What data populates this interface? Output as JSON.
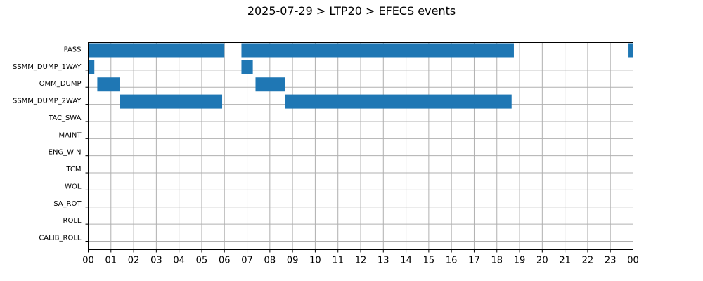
{
  "chart_data": {
    "type": "bar",
    "orientation": "horizontal-timeline",
    "title": "2025-07-29 > LTP20 > EFECS events",
    "xlabel": "",
    "ylabel": "",
    "xlim_hours": [
      0,
      24
    ],
    "x_tick_labels": [
      "00",
      "01",
      "02",
      "03",
      "04",
      "05",
      "06",
      "07",
      "08",
      "09",
      "10",
      "11",
      "12",
      "13",
      "14",
      "15",
      "16",
      "17",
      "18",
      "19",
      "20",
      "21",
      "22",
      "23",
      "00"
    ],
    "grid": true,
    "bar_color": "#1f77b4",
    "categories": [
      "PASS",
      "SSMM_DUMP_1WAY",
      "OMM_DUMP",
      "SSMM_DUMP_2WAY",
      "TAC_SWA",
      "MAINT",
      "ENG_WIN",
      "TCM",
      "WOL",
      "SA_ROT",
      "ROLL",
      "CALIB_ROLL"
    ],
    "events": [
      {
        "category": "PASS",
        "start": 0.0,
        "end": 6.0
      },
      {
        "category": "PASS",
        "start": 6.75,
        "end": 18.75
      },
      {
        "category": "PASS",
        "start": 23.8,
        "end": 24.0
      },
      {
        "category": "SSMM_DUMP_1WAY",
        "start": 0.0,
        "end": 0.27
      },
      {
        "category": "SSMM_DUMP_1WAY",
        "start": 6.75,
        "end": 7.25
      },
      {
        "category": "OMM_DUMP",
        "start": 0.4,
        "end": 1.4
      },
      {
        "category": "OMM_DUMP",
        "start": 7.37,
        "end": 8.67
      },
      {
        "category": "SSMM_DUMP_2WAY",
        "start": 1.4,
        "end": 5.9
      },
      {
        "category": "SSMM_DUMP_2WAY",
        "start": 8.67,
        "end": 18.65
      }
    ]
  }
}
